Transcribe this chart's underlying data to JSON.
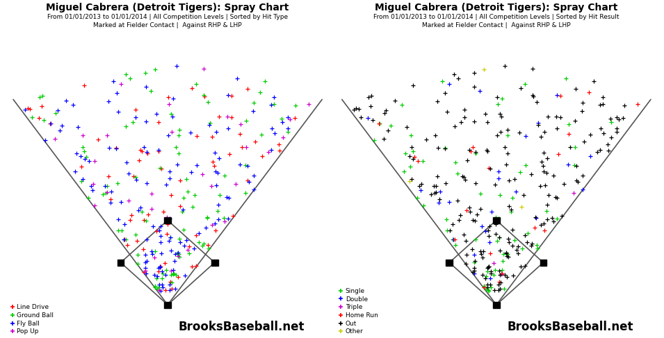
{
  "title1": "Miguel Cabrera (Detroit Tigers): Spray Chart",
  "subtitle1a": "From 01/01/2013 to 01/01/2014 | All Competition Levels | Sorted by Hit Type",
  "subtitle1b": "Marked at Fielder Contact |  Against RHP & LHP",
  "title2": "Miguel Cabrera (Detroit Tigers): Spray Chart",
  "subtitle2a": "From 01/01/2013 to 01/01/2014 | All Competition Levels | Sorted by Hit Result",
  "subtitle2b": "Marked at Fielder Contact |  Against RHP & LHP",
  "watermark": "BrooksBaseball.net",
  "legend1": [
    {
      "label": "Line Drive",
      "color": "#ff0000"
    },
    {
      "label": "Ground Ball",
      "color": "#00cc00"
    },
    {
      "label": "Fly Ball",
      "color": "#0000ff"
    },
    {
      "label": "Pop Up",
      "color": "#cc00cc"
    }
  ],
  "legend2": [
    {
      "label": "Single",
      "color": "#00cc00"
    },
    {
      "label": "Double",
      "color": "#0000ff"
    },
    {
      "label": "Triple",
      "color": "#cc00cc"
    },
    {
      "label": "Home Run",
      "color": "#ff0000"
    },
    {
      "label": "Out",
      "color": "#000000"
    },
    {
      "label": "Other",
      "color": "#cccc00"
    }
  ],
  "title_fontsize": 10,
  "subtitle_fontsize": 6.5,
  "watermark_fontsize": 12
}
